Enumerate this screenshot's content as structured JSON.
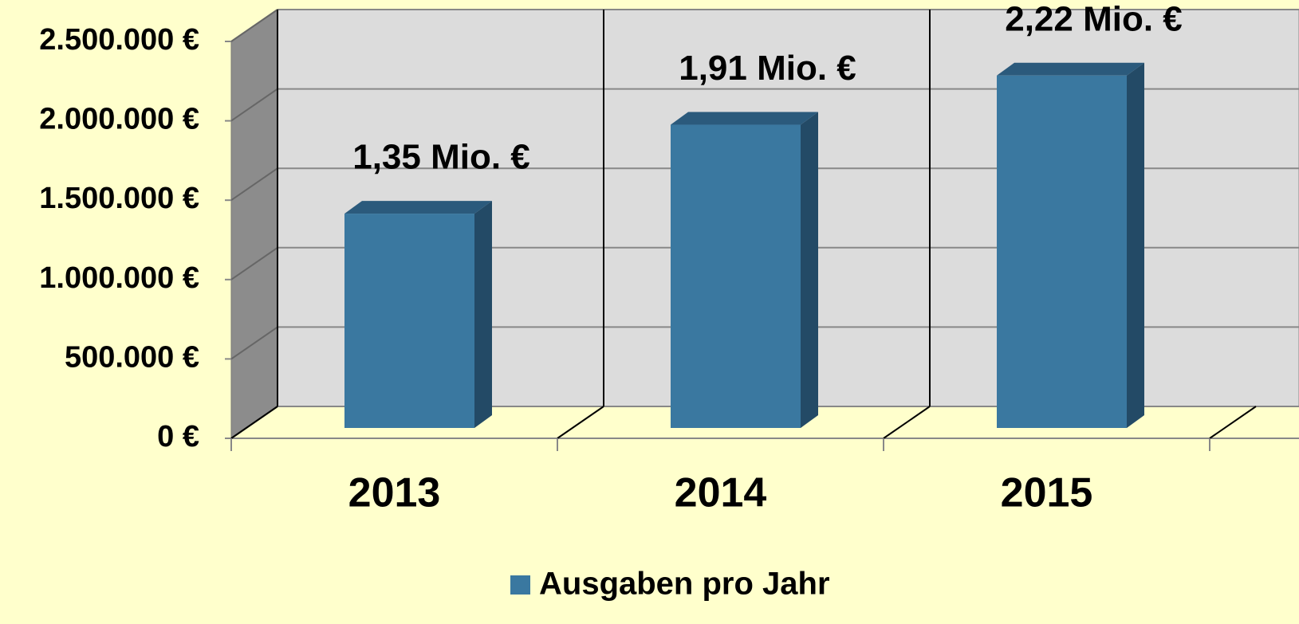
{
  "chart_data": {
    "type": "bar3d",
    "categories": [
      "2013",
      "2014",
      "2015"
    ],
    "series": [
      {
        "name": "Ausgaben pro Jahr",
        "color": "#3a78a0",
        "values": [
          1350000,
          1910000,
          2220000
        ],
        "value_labels": [
          "1,35 Mio. €",
          "1,91 Mio. €",
          "2,22 Mio. €"
        ]
      }
    ],
    "ylim": [
      0,
      2500000
    ],
    "yticks": [
      {
        "value": 0,
        "label": "0 €"
      },
      {
        "value": 500000,
        "label": "500.000 €"
      },
      {
        "value": 1000000,
        "label": "1.000.000 €"
      },
      {
        "value": 1500000,
        "label": "1.500.000 €"
      },
      {
        "value": 2000000,
        "label": "2.000.000 €"
      },
      {
        "value": 2500000,
        "label": "2.500.000 €"
      }
    ],
    "grid": true,
    "legend": "bottom"
  }
}
